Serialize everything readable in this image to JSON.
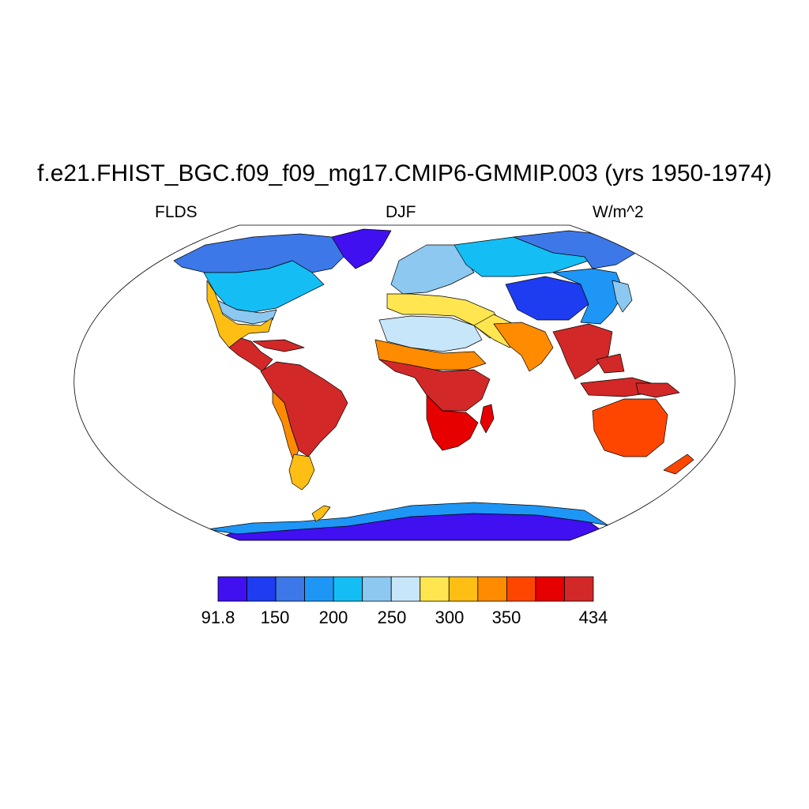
{
  "title": "f.e21.FHIST_BGC.f09_f09_mg17.CMIP6-GMMIP.003 (yrs 1950-1974)",
  "subtitle_left": "FLDS",
  "subtitle_center": "DJF",
  "subtitle_right": "W/m^2",
  "projection": "Robinson (world, pseudo-cylindrical)",
  "colorbar": {
    "min_label": "91.8",
    "max_label": "434",
    "tick_labels": [
      "91.8",
      "150",
      "200",
      "250",
      "300",
      "350",
      "434"
    ],
    "colors": [
      "#4010F0",
      "#1E3CF0",
      "#3C78E8",
      "#1E96F5",
      "#14BEF5",
      "#8CC8F0",
      "#C8E6FA",
      "#FFE650",
      "#FFBE14",
      "#FF8C00",
      "#FF4600",
      "#E60000",
      "#D22828"
    ]
  },
  "regions": [
    {
      "name": "greenland",
      "color": "#4010F0"
    },
    {
      "name": "canada-arctic",
      "color": "#3C78E8"
    },
    {
      "name": "north-america-mid",
      "color": "#14BEF5"
    },
    {
      "name": "us-south",
      "color": "#8CC8F0"
    },
    {
      "name": "mexico-gulf",
      "color": "#FFBE14"
    },
    {
      "name": "central-america",
      "color": "#D22828"
    },
    {
      "name": "south-america",
      "color": "#D22828"
    },
    {
      "name": "andes",
      "color": "#FF8C00"
    },
    {
      "name": "patagonia",
      "color": "#FFBE14"
    },
    {
      "name": "europe",
      "color": "#8CC8F0"
    },
    {
      "name": "mediterranean",
      "color": "#FFE650"
    },
    {
      "name": "sahara",
      "color": "#C8E6FA"
    },
    {
      "name": "sahel",
      "color": "#FF8C00"
    },
    {
      "name": "central-africa",
      "color": "#D22828"
    },
    {
      "name": "southern-africa",
      "color": "#E60000"
    },
    {
      "name": "madagascar",
      "color": "#E60000"
    },
    {
      "name": "middle-east",
      "color": "#FFE650"
    },
    {
      "name": "russia",
      "color": "#14BEF5"
    },
    {
      "name": "siberia",
      "color": "#3C78E8"
    },
    {
      "name": "mongolia-tibet",
      "color": "#1E3CF0"
    },
    {
      "name": "china",
      "color": "#1E96F5"
    },
    {
      "name": "india",
      "color": "#FF8C00"
    },
    {
      "name": "southeast-asia",
      "color": "#D22828"
    },
    {
      "name": "indonesia",
      "color": "#D22828"
    },
    {
      "name": "new-guinea",
      "color": "#D22828"
    },
    {
      "name": "australia",
      "color": "#FF4600"
    },
    {
      "name": "new-zealand",
      "color": "#FF4600"
    },
    {
      "name": "japan",
      "color": "#8CC8F0"
    },
    {
      "name": "antarctica",
      "color": "#4010F0"
    },
    {
      "name": "antarctica-coast",
      "color": "#1E96F5"
    },
    {
      "name": "antarctic-peninsula",
      "color": "#FFBE14"
    }
  ]
}
